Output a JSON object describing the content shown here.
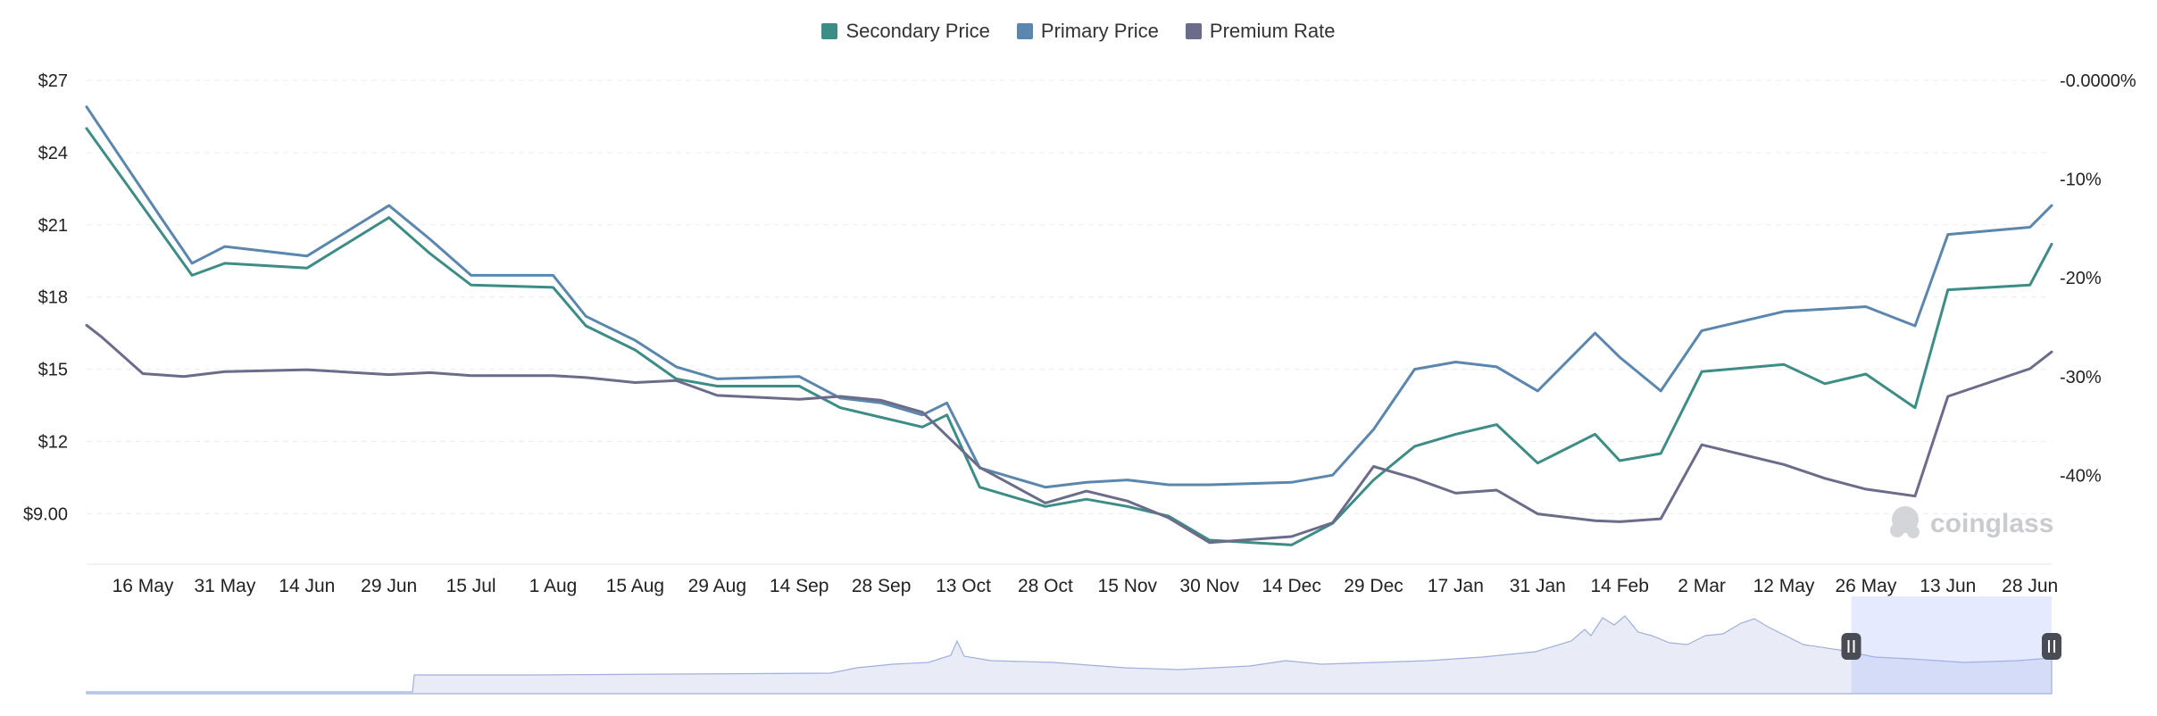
{
  "legend": {
    "items": [
      {
        "label": "Secondary Price",
        "color": "#3d8c86"
      },
      {
        "label": "Primary Price",
        "color": "#5b86ad"
      },
      {
        "label": "Premium Rate",
        "color": "#6a6c8a"
      }
    ]
  },
  "watermark": "coinglass",
  "chart_data": {
    "type": "line",
    "x_tick_labels": [
      "16 May",
      "31 May",
      "14 Jun",
      "29 Jun",
      "15 Jul",
      "1 Aug",
      "15 Aug",
      "29 Aug",
      "14 Sep",
      "28 Sep",
      "13 Oct",
      "28 Oct",
      "15 Nov",
      "30 Nov",
      "14 Dec",
      "29 Dec",
      "17 Jan",
      "31 Jan",
      "14 Feb",
      "2 Mar",
      "12 May",
      "26 May",
      "13 Jun",
      "28 Jun"
    ],
    "y_left": {
      "ticks": [
        9,
        12,
        15,
        18,
        21,
        24,
        27
      ],
      "tick_labels": [
        "$9.00",
        "$12",
        "$15",
        "$18",
        "$21",
        "$24",
        "$27"
      ],
      "range": [
        6.9,
        27
      ]
    },
    "y_right": {
      "ticks": [
        0,
        -10,
        -20,
        -30,
        -40
      ],
      "tick_labels": [
        "-0.0000%",
        "-10%",
        "-20%",
        "-30%",
        "-40%"
      ],
      "range": [
        -49,
        0
      ]
    },
    "grid": true,
    "legend_position": "top-center",
    "series": [
      {
        "name": "Secondary Price",
        "axis": "left",
        "color": "#3d8c86",
        "values": [
          [
            0,
            25
          ],
          [
            1.2,
            20.8
          ],
          [
            1.6,
            18.9
          ],
          [
            2,
            19.4
          ],
          [
            3,
            19.2
          ],
          [
            4,
            21.3
          ],
          [
            4.5,
            19.8
          ],
          [
            5,
            18.5
          ],
          [
            6,
            18.4
          ],
          [
            6.4,
            16.8
          ],
          [
            7,
            15.8
          ],
          [
            7.5,
            14.6
          ],
          [
            8,
            14.3
          ],
          [
            9,
            14.3
          ],
          [
            9.5,
            13.4
          ],
          [
            10,
            13
          ],
          [
            10.5,
            12.6
          ],
          [
            10.8,
            13.1
          ],
          [
            11.2,
            10.1
          ],
          [
            12,
            9.3
          ],
          [
            12.5,
            9.6
          ],
          [
            13,
            9.3
          ],
          [
            13.5,
            8.9
          ],
          [
            14,
            7.9
          ],
          [
            15,
            7.7
          ],
          [
            15.5,
            8.6
          ],
          [
            16,
            10.4
          ],
          [
            16.5,
            11.8
          ],
          [
            17,
            12.3
          ],
          [
            17.5,
            12.7
          ],
          [
            18,
            11.1
          ],
          [
            18.7,
            12.3
          ],
          [
            19,
            11.2
          ],
          [
            19.5,
            11.5
          ],
          [
            20,
            14.9
          ],
          [
            21,
            15.2
          ],
          [
            21.5,
            14.4
          ],
          [
            22,
            14.8
          ],
          [
            22.6,
            13.4
          ],
          [
            23,
            18.3
          ],
          [
            24,
            18.5
          ],
          [
            24.3,
            20.2
          ]
        ]
      },
      {
        "name": "Primary Price",
        "axis": "left",
        "color": "#5b86ad",
        "values": [
          [
            0,
            25.9
          ],
          [
            1.2,
            21.4
          ],
          [
            1.6,
            19.4
          ],
          [
            2,
            20.1
          ],
          [
            3,
            19.7
          ],
          [
            4,
            21.8
          ],
          [
            4.5,
            20.4
          ],
          [
            5,
            18.9
          ],
          [
            6,
            18.9
          ],
          [
            6.4,
            17.2
          ],
          [
            7,
            16.2
          ],
          [
            7.5,
            15.1
          ],
          [
            8,
            14.6
          ],
          [
            9,
            14.7
          ],
          [
            9.5,
            13.8
          ],
          [
            10,
            13.6
          ],
          [
            10.5,
            13.1
          ],
          [
            10.8,
            13.6
          ],
          [
            11.2,
            10.9
          ],
          [
            12,
            10.1
          ],
          [
            12.5,
            10.3
          ],
          [
            13,
            10.4
          ],
          [
            13.5,
            10.2
          ],
          [
            14,
            10.2
          ],
          [
            15,
            10.3
          ],
          [
            15.5,
            10.6
          ],
          [
            16,
            12.5
          ],
          [
            16.5,
            15
          ],
          [
            17,
            15.3
          ],
          [
            17.5,
            15.1
          ],
          [
            18,
            14.1
          ],
          [
            18.7,
            16.5
          ],
          [
            19,
            15.5
          ],
          [
            19.5,
            14.1
          ],
          [
            20,
            16.6
          ],
          [
            21,
            17.4
          ],
          [
            21.5,
            17.5
          ],
          [
            22,
            17.6
          ],
          [
            22.6,
            16.8
          ],
          [
            23,
            20.6
          ],
          [
            24,
            20.9
          ],
          [
            24.3,
            21.8
          ]
        ]
      },
      {
        "name": "Premium Rate",
        "axis": "right",
        "color": "#6a6c8a",
        "values": [
          [
            0,
            -24.8
          ],
          [
            0.5,
            -26
          ],
          [
            1,
            -29.7
          ],
          [
            1.5,
            -30
          ],
          [
            2,
            -29.5
          ],
          [
            3,
            -29.3
          ],
          [
            4,
            -29.8
          ],
          [
            4.5,
            -29.6
          ],
          [
            5,
            -29.9
          ],
          [
            6,
            -29.9
          ],
          [
            6.4,
            -30.1
          ],
          [
            7,
            -30.6
          ],
          [
            7.5,
            -30.4
          ],
          [
            8,
            -31.9
          ],
          [
            9,
            -32.3
          ],
          [
            9.5,
            -32
          ],
          [
            10,
            -32.4
          ],
          [
            10.5,
            -33.6
          ],
          [
            11.2,
            -39.2
          ],
          [
            12,
            -42.8
          ],
          [
            12.5,
            -41.6
          ],
          [
            13,
            -42.6
          ],
          [
            13.5,
            -44.3
          ],
          [
            14,
            -46.8
          ],
          [
            15,
            -46.2
          ],
          [
            15.5,
            -44.8
          ],
          [
            16,
            -39.1
          ],
          [
            16.5,
            -40.3
          ],
          [
            17,
            -41.8
          ],
          [
            17.5,
            -41.5
          ],
          [
            18,
            -43.9
          ],
          [
            18.7,
            -44.6
          ],
          [
            19,
            -44.7
          ],
          [
            19.5,
            -44.4
          ],
          [
            20,
            -36.9
          ],
          [
            21,
            -38.9
          ],
          [
            21.5,
            -40.3
          ],
          [
            22,
            -41.4
          ],
          [
            22.6,
            -42.1
          ],
          [
            23,
            -32
          ],
          [
            24,
            -29.2
          ],
          [
            24.3,
            -27.5
          ]
        ]
      }
    ],
    "navigator": {
      "selected_range": [
        0.898,
        1.0
      ]
    }
  }
}
